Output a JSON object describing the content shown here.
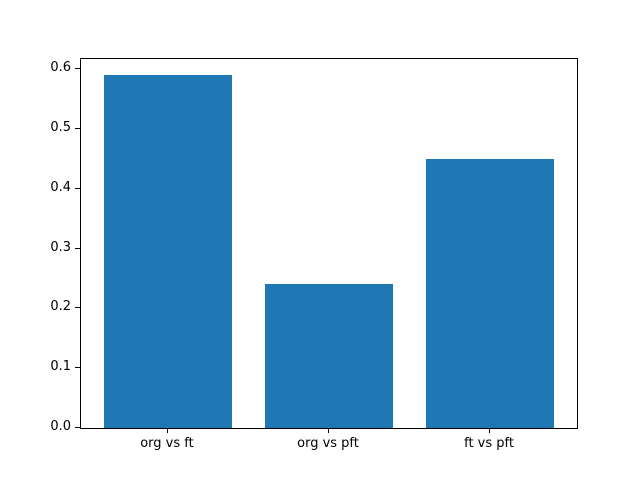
{
  "chart_data": {
    "type": "bar",
    "categories": [
      "org vs ft",
      "org vs pft",
      "ft vs pft"
    ],
    "values": [
      0.59,
      0.24,
      0.45
    ],
    "title": "",
    "xlabel": "",
    "ylabel": "",
    "ylim": [
      0,
      0.617
    ],
    "yticks": [
      0.0,
      0.1,
      0.2,
      0.3,
      0.4,
      0.5,
      0.6
    ],
    "ytick_labels": [
      "0.0",
      "0.1",
      "0.2",
      "0.3",
      "0.4",
      "0.5",
      "0.6"
    ],
    "bar_width_units": 0.8,
    "bar_color": "#1f77b4",
    "spine_color": "#000000",
    "background_color": "#ffffff",
    "grid": false,
    "legend": false
  }
}
